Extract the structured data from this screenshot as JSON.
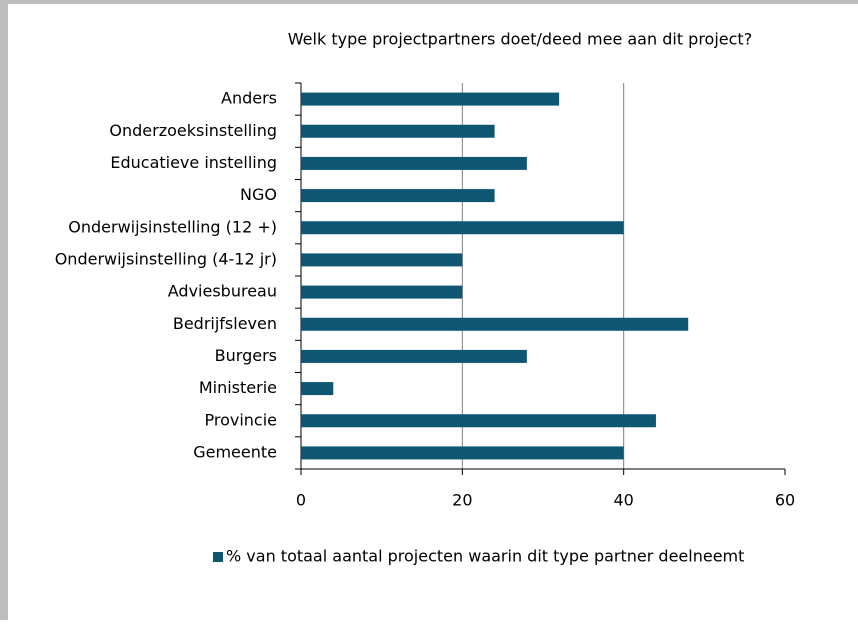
{
  "chart_data": {
    "type": "barh",
    "title": "Welk type projectpartners doet/deed mee aan dit project?",
    "categories": [
      "Anders",
      "Onderzoeksinstelling",
      "Educatieve instelling",
      "NGO",
      "Onderwijsinstelling (12 +)",
      "Onderwijsinstelling (4-12 jr)",
      "Adviesbureau",
      "Bedrijfsleven",
      "Burgers",
      "Ministerie",
      "Provincie",
      "Gemeente"
    ],
    "series": [
      {
        "name": "% van totaal aantal projecten waarin dit type partner deelneemt",
        "color": "#0f5673",
        "values": [
          32,
          24,
          28,
          24,
          40,
          20,
          20,
          48,
          28,
          4,
          44,
          40
        ]
      }
    ],
    "xlim": [
      0,
      60
    ],
    "xticks": [
      0,
      20,
      40,
      60
    ],
    "grid": true,
    "legend": "bottom"
  }
}
